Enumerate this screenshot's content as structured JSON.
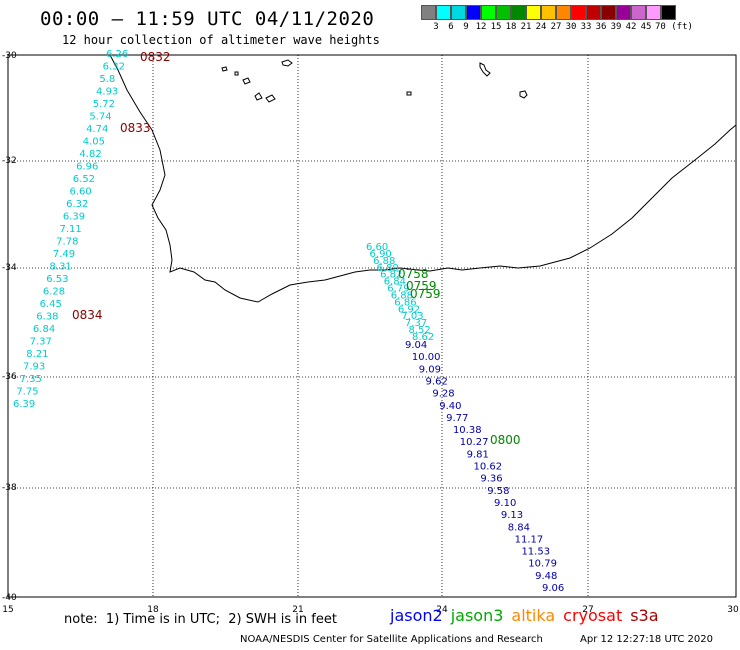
{
  "title": "00:00 – 11:59 UTC 04/11/2020",
  "subtitle": "12 hour collection of altimeter wave heights",
  "colorbar": {
    "colors": [
      "#808080",
      "#00ffff",
      "#00d8e0",
      "#0000ff",
      "#00ff00",
      "#00c000",
      "#008800",
      "#ffff00",
      "#ffc000",
      "#ff8800",
      "#ff0000",
      "#c00000",
      "#880000",
      "#990099",
      "#cc66cc",
      "#ff99ff",
      "#000000"
    ],
    "labels": [
      "3",
      "6",
      "9",
      "12",
      "15",
      "18",
      "21",
      "24",
      "27",
      "30",
      "33",
      "36",
      "39",
      "42",
      "45",
      "70 (ft)"
    ]
  },
  "axes": {
    "lat_labels": [
      "-30",
      "-32",
      "-34",
      "-36",
      "-38",
      "-40"
    ],
    "lon_labels": [
      "15",
      "18",
      "21",
      "24",
      "27",
      "30"
    ]
  },
  "tracks": {
    "cryosat_color": "#8b0000",
    "west": {
      "color": "#00cccc",
      "values": [
        "6.26",
        "6.32",
        "5.8",
        "4.93",
        "5.72",
        "5.74",
        "4.74",
        "4.05",
        "4.82",
        "6.96",
        "6.52",
        "6.60",
        "6.32",
        "6.39",
        "7.11",
        "7.78",
        "7.49",
        "8.31",
        "6.53",
        "6.28",
        "6.45",
        "6.38",
        "6.84",
        "7.37",
        "8.21",
        "7.93",
        "7.35",
        "7.75",
        "6.39"
      ]
    },
    "west_times": [
      "0832",
      "0833",
      "0834"
    ],
    "east_cyan": {
      "color": "#00cccc",
      "values": [
        "6.60",
        "6.90",
        "6.88",
        "6.89",
        "6.82",
        "6.84",
        "6.79",
        "6.88",
        "6.86",
        "6.92",
        "7.03",
        "7.37",
        "8.52",
        "8.62"
      ]
    },
    "east_blue": {
      "color": "#0000aa",
      "values": [
        "9.04",
        "10.00",
        "9.09",
        "9.62",
        "9.28",
        "9.40",
        "9.77",
        "10.38",
        "10.27",
        "9.81",
        "10.62",
        "9.36",
        "9.58",
        "9.10",
        "9.13",
        "8.84",
        "11.17",
        "11.53",
        "10.79",
        "9.48",
        "9.06"
      ]
    },
    "east_times": [
      "0758",
      "0759",
      "0800"
    ],
    "jason3_color": "#008800"
  },
  "note": "note:  1) Time is in UTC;  2) SWH is in feet",
  "legend": [
    {
      "label": "jason2",
      "color": "#0000ff"
    },
    {
      "label": "jason3",
      "color": "#00aa00"
    },
    {
      "label": "altika",
      "color": "#ff8800"
    },
    {
      "label": "cryosat",
      "color": "#ff0000"
    },
    {
      "label": "s3a",
      "color": "#aa0000"
    }
  ],
  "credit": "NOAA/NESDIS Center for Satellite Applications and Research",
  "timestamp": "Apr 12 12:27:18 UTC 2020"
}
